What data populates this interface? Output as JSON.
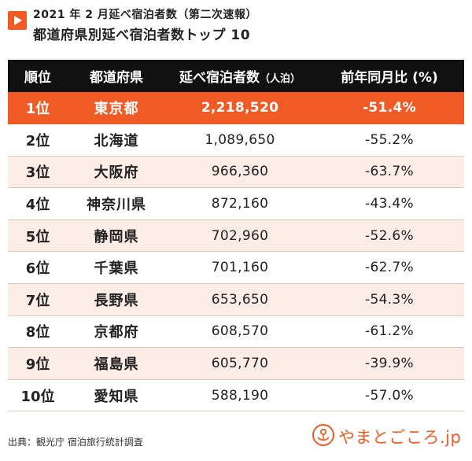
{
  "header": {
    "subtitle": "2021 年 2 月延べ宿泊者数（第二次速報）",
    "title": "都道府県別延べ宿泊者数トップ 10"
  },
  "table": {
    "columns": {
      "rank": "順位",
      "prefecture": "都道府県",
      "stays": "延べ宿泊者数",
      "stays_unit": "（人泊）",
      "yoy": "前年同月比 (%)"
    },
    "rows": [
      {
        "rank": "1位",
        "prefecture": "東京都",
        "stays": "2,218,520",
        "yoy": "-51.4%"
      },
      {
        "rank": "2位",
        "prefecture": "北海道",
        "stays": "1,089,650",
        "yoy": "-55.2%"
      },
      {
        "rank": "3位",
        "prefecture": "大阪府",
        "stays": "966,360",
        "yoy": "-63.7%"
      },
      {
        "rank": "4位",
        "prefecture": "神奈川県",
        "stays": "872,160",
        "yoy": "-43.4%"
      },
      {
        "rank": "5位",
        "prefecture": "静岡県",
        "stays": "702,960",
        "yoy": "-52.6%"
      },
      {
        "rank": "6位",
        "prefecture": "千葉県",
        "stays": "701,160",
        "yoy": "-62.7%"
      },
      {
        "rank": "7位",
        "prefecture": "長野県",
        "stays": "653,650",
        "yoy": "-54.3%"
      },
      {
        "rank": "8位",
        "prefecture": "京都府",
        "stays": "608,570",
        "yoy": "-61.2%"
      },
      {
        "rank": "9位",
        "prefecture": "福島県",
        "stays": "605,770",
        "yoy": "-39.9%"
      },
      {
        "rank": "10位",
        "prefecture": "愛知県",
        "stays": "588,190",
        "yoy": "-57.0%"
      }
    ]
  },
  "footer": {
    "source": "出典：観光庁 宿泊旅行統計調査",
    "logo_text": "やまとごころ.jp"
  },
  "colors": {
    "accent": "#f05a24",
    "header_bg": "#111111",
    "row_shade": "#fbece6"
  },
  "icons": {
    "title_marker": "play-icon",
    "logo_mark": "yamatogokoro-logo-icon"
  }
}
